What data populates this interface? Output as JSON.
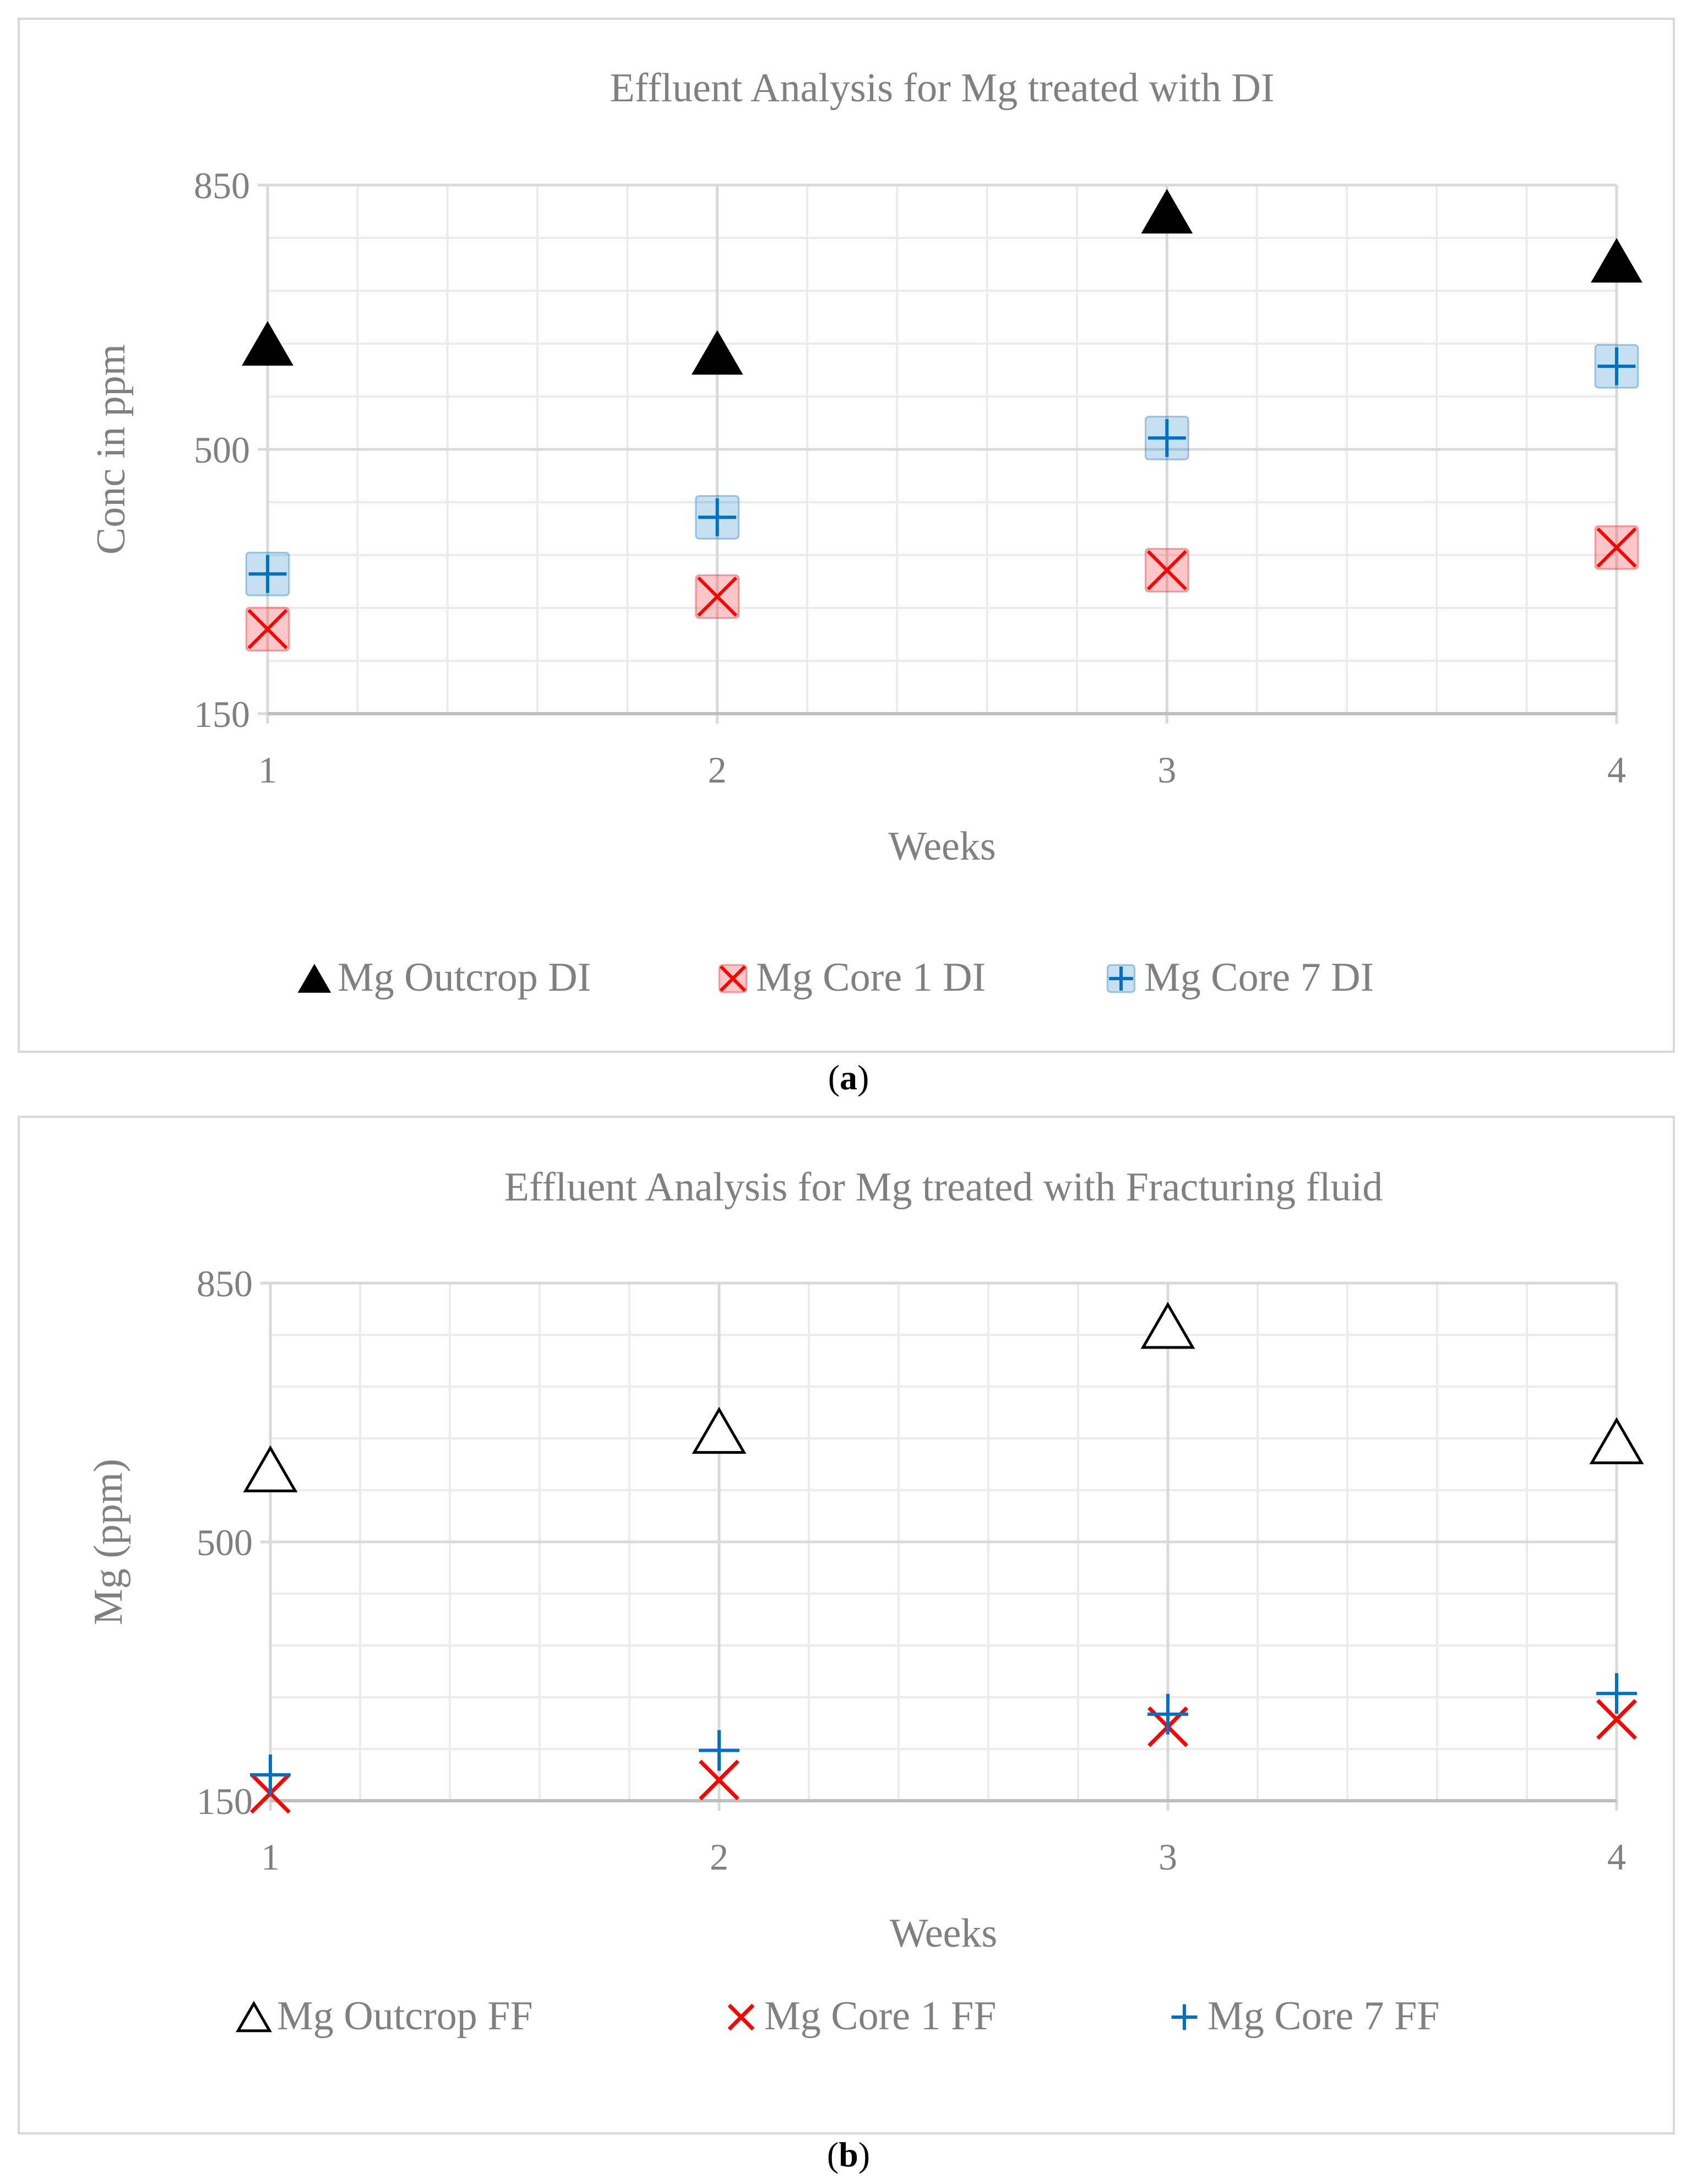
{
  "captions": [
    {
      "open": "(",
      "letter": "a",
      "close": ")"
    },
    {
      "open": "(",
      "letter": "b",
      "close": ")"
    }
  ],
  "colors": {
    "black": "#000000",
    "red": "#ff0000",
    "blue": "#0070c0",
    "grid": "#d9d9d9",
    "text": "#808080"
  },
  "chart_data": [
    {
      "type": "scatter",
      "title": "Effluent Analysis for Mg treated with DI",
      "xlabel": "Weeks",
      "ylabel": "Conc in ppm",
      "x": [
        1,
        2,
        3,
        4
      ],
      "xlim": [
        1,
        4
      ],
      "ylim": [
        150,
        850
      ],
      "yticks": [
        150,
        500,
        850
      ],
      "xticks": [
        1,
        2,
        3,
        4
      ],
      "legend": "bottom",
      "series": [
        {
          "name": "Mg Outcrop DI",
          "marker": "triangle-filled",
          "color": "#000000",
          "values": [
            640,
            628,
            815,
            750
          ]
        },
        {
          "name": "Mg Core 1 DI",
          "marker": "x-boxed",
          "color": "#ff0000",
          "values": [
            262,
            305,
            340,
            370
          ]
        },
        {
          "name": "Mg Core 7 DI",
          "marker": "plus-boxed",
          "color": "#0070c0",
          "values": [
            335,
            410,
            515,
            610
          ]
        }
      ]
    },
    {
      "type": "scatter",
      "title": "Effluent Analysis for Mg treated with Fracturing fluid",
      "xlabel": "Weeks",
      "ylabel": "Mg (ppm)",
      "x": [
        1,
        2,
        3,
        4
      ],
      "xlim": [
        1,
        4
      ],
      "ylim": [
        150,
        850
      ],
      "yticks": [
        150,
        500,
        850
      ],
      "xticks": [
        1,
        2,
        3,
        4
      ],
      "legend": "bottom",
      "series": [
        {
          "name": "Mg Outcrop FF",
          "marker": "triangle-open",
          "color": "#000000",
          "values": [
            598,
            650,
            792,
            636
          ]
        },
        {
          "name": "Mg Core 1 FF",
          "marker": "x",
          "color": "#ff0000",
          "values": [
            160,
            178,
            250,
            260
          ]
        },
        {
          "name": "Mg Core 7 FF",
          "marker": "plus",
          "color": "#0070c0",
          "values": [
            185,
            218,
            267,
            295
          ]
        }
      ]
    }
  ]
}
